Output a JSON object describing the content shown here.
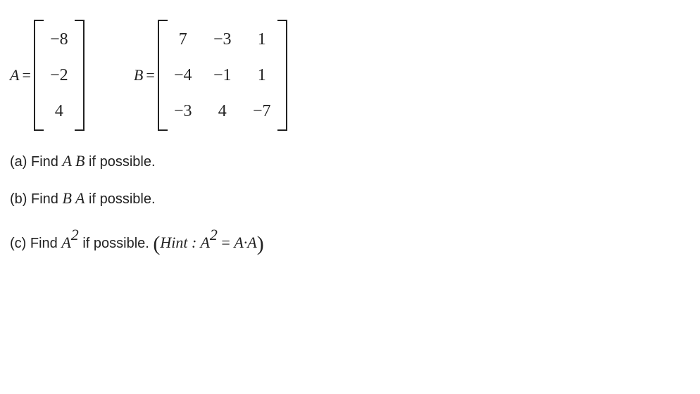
{
  "matrixA": {
    "label": "A",
    "equals": "=",
    "rows": 3,
    "cols": 1,
    "cells": [
      "−8",
      "−2",
      "4"
    ]
  },
  "matrixB": {
    "label": "B",
    "equals": "=",
    "rows": 3,
    "cols": 3,
    "cells": [
      "7",
      "−3",
      "1",
      "−4",
      "−1",
      "1",
      "−3",
      "4",
      "−7"
    ]
  },
  "parts": {
    "a": {
      "prefix": "(a) Find ",
      "expr": "A B",
      "suffix": " if possible."
    },
    "b": {
      "prefix": "(b) Find ",
      "expr": "B A",
      "suffix": " if possible."
    },
    "c": {
      "prefix": "(c) Find ",
      "expr_base": "A",
      "expr_sup": "2",
      "middle": " if possible. ",
      "hint_open": "(",
      "hint_label": "Hint : ",
      "hint_lhs_base": "A",
      "hint_lhs_sup": "2",
      "hint_eq": " = ",
      "hint_rhs": "A·A",
      "hint_close": ")"
    }
  }
}
